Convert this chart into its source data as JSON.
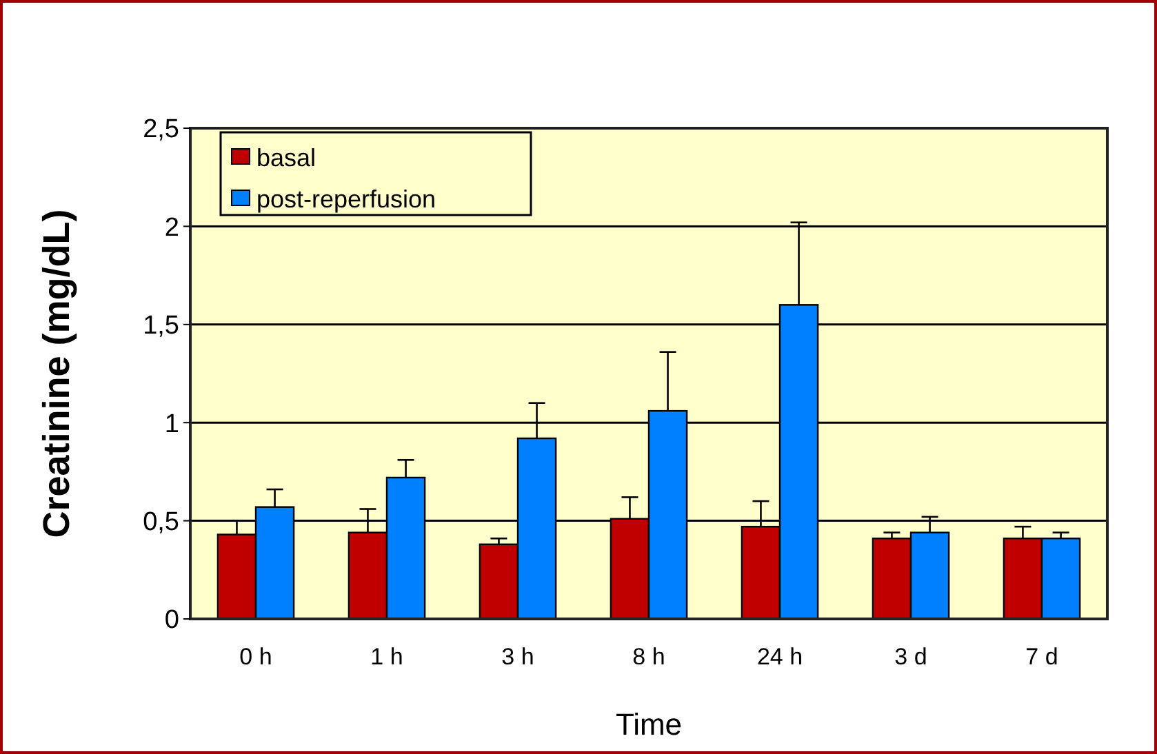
{
  "chart_data": {
    "type": "bar",
    "xlabel": "Time",
    "ylabel": "Creatinine (mg/dL)",
    "categories": [
      "0 h",
      "1 h",
      "3 h",
      "8 h",
      "24 h",
      "3 d",
      "7 d"
    ],
    "series": [
      {
        "name": "basal",
        "color": "#c00000",
        "values": [
          0.43,
          0.44,
          0.38,
          0.51,
          0.47,
          0.41,
          0.41
        ],
        "errors": [
          0.07,
          0.12,
          0.03,
          0.11,
          0.13,
          0.03,
          0.06
        ]
      },
      {
        "name": "post-reperfusion",
        "color": "#0080ff",
        "values": [
          0.57,
          0.72,
          0.92,
          1.06,
          1.6,
          0.44,
          0.41
        ],
        "errors": [
          0.09,
          0.09,
          0.18,
          0.3,
          0.42,
          0.08,
          0.03
        ]
      }
    ],
    "ylim": [
      0,
      2.5
    ],
    "yticks": [
      0,
      {
        "value": 0.5,
        "label": "0,5"
      },
      1,
      {
        "value": 1.5,
        "label": "1,5"
      },
      2,
      {
        "value": 2.5,
        "label": "2,5"
      }
    ],
    "grid": "y",
    "legend": "top left"
  }
}
